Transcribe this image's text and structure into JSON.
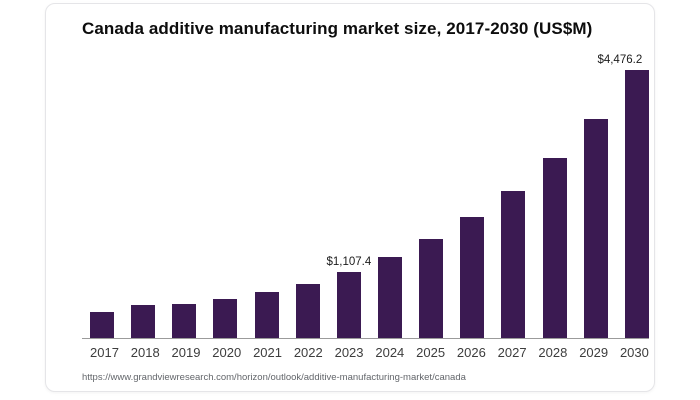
{
  "chart_data": {
    "type": "bar",
    "title": "Canada additive manufacturing market size, 2017-2030 (US$M)",
    "xlabel": "",
    "ylabel": "",
    "categories": [
      "2017",
      "2018",
      "2019",
      "2020",
      "2021",
      "2022",
      "2023",
      "2024",
      "2025",
      "2026",
      "2027",
      "2028",
      "2029",
      "2030"
    ],
    "values": [
      430,
      545,
      575,
      655,
      765,
      905,
      1107.4,
      1352,
      1650,
      2014,
      2459,
      3002,
      3665,
      4476.2
    ],
    "labeled_points": [
      {
        "category": "2023",
        "label": "$1,107.4"
      },
      {
        "category": "2030",
        "label": "$4,476.2"
      }
    ],
    "ylim": [
      0,
      4476.2
    ],
    "grid": false,
    "legend": false,
    "bar_color": "#3b1a52",
    "axis_line_color": "#9b9b9b"
  },
  "source_url": "https://www.grandviewresearch.com/horizon/outlook/additive-manufacturing-market/canada"
}
